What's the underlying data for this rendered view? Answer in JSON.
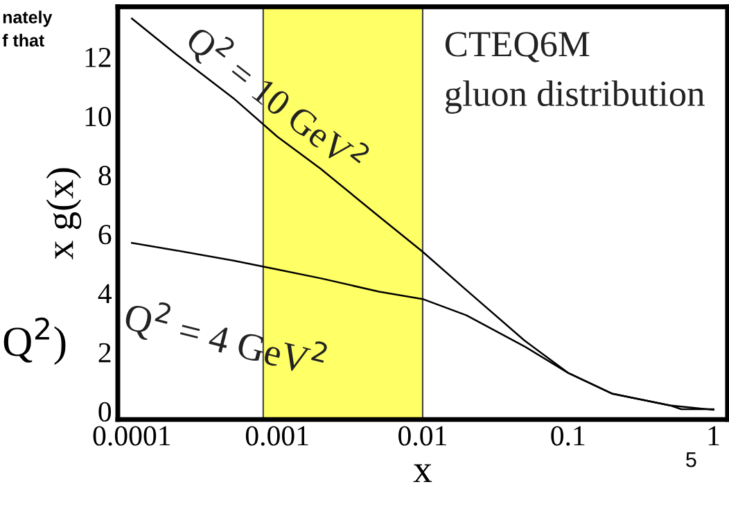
{
  "chart_data": {
    "type": "line",
    "xlabel": "x",
    "ylabel": "x g(x)",
    "log": "x",
    "xlim": [
      8e-05,
      1.25
    ],
    "ylim": [
      -0.28,
      13.7
    ],
    "xticks": [
      {
        "value": 0.0001,
        "label": "0.0001"
      },
      {
        "value": 0.001,
        "label": "0.001"
      },
      {
        "value": 0.01,
        "label": "0.01"
      },
      {
        "value": 0.1,
        "label": "0.1"
      },
      {
        "value": 1,
        "label": "1"
      }
    ],
    "yticks": [
      0,
      2,
      4,
      6,
      8,
      10,
      12
    ],
    "grid": false,
    "legend": false,
    "marker": "none",
    "line_style": "solid",
    "series": [
      {
        "color": "#000000",
        "x": [
          0.0001,
          0.0002,
          0.0005,
          0.001,
          0.002,
          0.005,
          0.01,
          0.02,
          0.05,
          0.1,
          0.2,
          0.5,
          1
        ],
        "values": [
          13.3,
          12.1,
          10.6,
          9.3,
          8.2,
          6.6,
          5.4,
          4.1,
          2.4,
          1.3,
          0.6,
          0.2,
          0.05
        ]
      },
      {
        "color": "#000000",
        "x": [
          0.0001,
          0.0002,
          0.0005,
          0.001,
          0.002,
          0.005,
          0.01,
          0.02,
          0.05,
          0.1,
          0.2,
          0.5,
          0.6,
          1
        ],
        "values": [
          5.7,
          5.45,
          5.1,
          4.8,
          4.5,
          4.05,
          3.8,
          3.25,
          2.2,
          1.3,
          0.6,
          0.2,
          0.07,
          0.07
        ]
      }
    ],
    "bands": [
      {
        "axis": "x",
        "from": 0.0008,
        "to": 0.01,
        "color": "#ffff33"
      }
    ],
    "annotations": [
      "Q$^{2}$ = 10 GeV$^{2}$",
      "Q$^{2}$ = 4 GeV$^{2}$",
      "CTEQ6M",
      "gluon distribution",
      "nately",
      "f that",
      "Q$^{2}$)",
      "5"
    ]
  }
}
